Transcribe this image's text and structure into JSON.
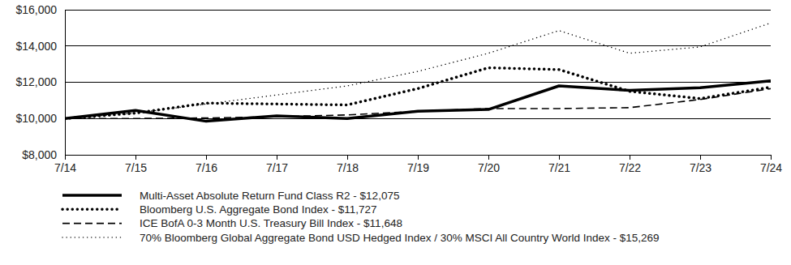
{
  "chart_data": {
    "type": "line",
    "categories": [
      "7/14",
      "7/15",
      "7/16",
      "7/17",
      "7/18",
      "7/19",
      "7/20",
      "7/21",
      "7/22",
      "7/23",
      "7/24"
    ],
    "ylim": [
      8000,
      16000
    ],
    "yticks": [
      {
        "value": 8000,
        "label": "$8,000"
      },
      {
        "value": 10000,
        "label": "$10,000"
      },
      {
        "value": 12000,
        "label": "$12,000"
      },
      {
        "value": 14000,
        "label": "$14,000"
      },
      {
        "value": 16000,
        "label": "$16,000"
      }
    ],
    "grid": true,
    "legend": "bottom",
    "series": [
      {
        "name": "Multi-Asset Absolute Return Fund Class R2 - $12,075",
        "color": "#000000",
        "line_style": "solid",
        "values": [
          10000,
          10450,
          9850,
          10150,
          10000,
          10400,
          10500,
          11800,
          11550,
          11700,
          12075
        ]
      },
      {
        "name": "Bloomberg U.S. Aggregate Bond Index - $11,727",
        "color": "#000000",
        "line_style": "dotted",
        "values": [
          10000,
          10300,
          10850,
          10800,
          10750,
          11650,
          12800,
          12700,
          11500,
          11100,
          11727
        ]
      },
      {
        "name": "ICE BofA 0-3 Month U.S. Treasury Bill Index - $11,648",
        "color": "#000000",
        "line_style": "dashed",
        "values": [
          10000,
          10000,
          10030,
          10100,
          10200,
          10400,
          10550,
          10550,
          10600,
          11050,
          11648
        ]
      },
      {
        "name": "70% Bloomberg Global Aggregate Bond USD Hedged Index / 30% MSCI All Country World Index - $15,269",
        "color": "#000000",
        "line_style": "fine-dotted",
        "values": [
          10000,
          10300,
          10800,
          11300,
          11800,
          12600,
          13600,
          14850,
          13600,
          13950,
          15269
        ]
      }
    ]
  }
}
